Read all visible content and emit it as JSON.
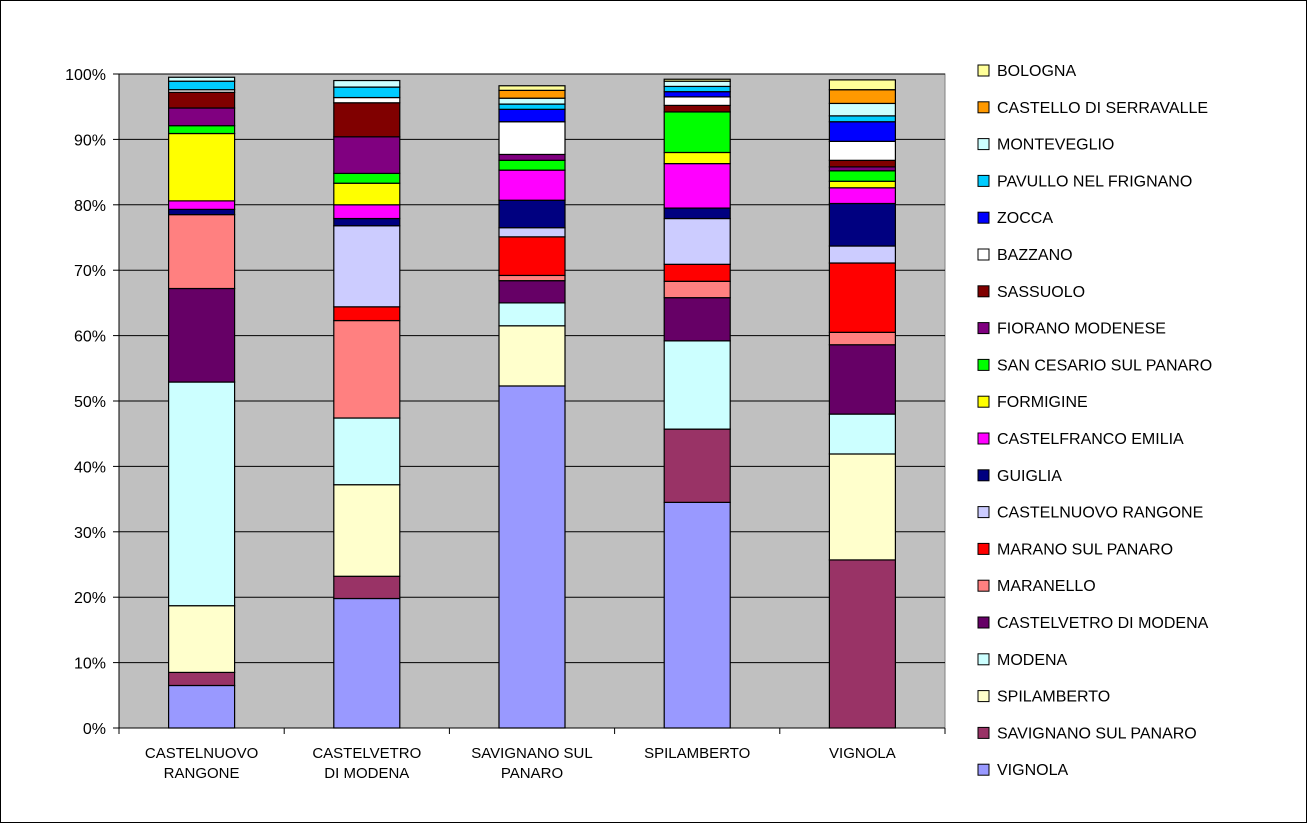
{
  "chart_data": {
    "type": "bar",
    "stacked": true,
    "normalized": true,
    "title": "",
    "xlabel": "",
    "ylabel": "",
    "ylim": [
      0,
      100
    ],
    "y_ticks": [
      "0%",
      "10%",
      "20%",
      "30%",
      "40%",
      "50%",
      "60%",
      "70%",
      "80%",
      "90%",
      "100%"
    ],
    "grid": true,
    "legend_position": "right",
    "plot_background": "#c0c0c0",
    "categories": [
      [
        "CASTELNUOVO",
        "RANGONE"
      ],
      [
        "CASTELVETRO",
        "DI MODENA"
      ],
      [
        "SAVIGNANO SUL",
        "PANARO"
      ],
      [
        "SPILAMBERTO"
      ],
      [
        "VIGNOLA"
      ]
    ],
    "series": [
      {
        "name": "VIGNOLA",
        "color": "#9999ff",
        "values": [
          6.5,
          19.8,
          52.3,
          34.5,
          0
        ]
      },
      {
        "name": "SAVIGNANO SUL PANARO",
        "color": "#993366",
        "values": [
          2.0,
          3.4,
          0,
          11.2,
          25.7
        ]
      },
      {
        "name": "SPILAMBERTO",
        "color": "#ffffcc",
        "values": [
          10.2,
          14.0,
          9.2,
          0,
          16.2
        ]
      },
      {
        "name": "MODENA",
        "color": "#ccffff",
        "values": [
          34.2,
          10.2,
          3.5,
          13.5,
          6.1
        ]
      },
      {
        "name": "CASTELVETRO DI MODENA",
        "color": "#660066",
        "values": [
          14.3,
          0,
          3.4,
          6.6,
          10.6
        ]
      },
      {
        "name": "MARANELLO",
        "color": "#ff8080",
        "values": [
          11.3,
          14.9,
          0.8,
          2.5,
          1.9
        ]
      },
      {
        "name": "MARANO SUL PANARO",
        "color": "#ff0000",
        "values": [
          0,
          2.1,
          5.9,
          2.6,
          10.6
        ]
      },
      {
        "name": "CASTELNUOVO RANGONE",
        "color": "#ccccff",
        "values": [
          0,
          12.4,
          1.4,
          7.0,
          2.6
        ]
      },
      {
        "name": "GUIGLIA",
        "color": "#000080",
        "values": [
          0.8,
          1.1,
          4.2,
          1.6,
          6.5
        ]
      },
      {
        "name": "CASTELFRANCO EMILIA",
        "color": "#ff00ff",
        "values": [
          1.3,
          2.1,
          4.6,
          6.8,
          2.4
        ]
      },
      {
        "name": "FORMIGINE",
        "color": "#ffff00",
        "values": [
          10.3,
          3.3,
          0,
          1.7,
          1.0
        ]
      },
      {
        "name": "SAN CESARIO SUL PANARO",
        "color": "#00ff00",
        "values": [
          1.2,
          1.5,
          1.5,
          6.2,
          1.6
        ]
      },
      {
        "name": "FIORANO MODENESE",
        "color": "#800080",
        "values": [
          2.7,
          5.6,
          0.9,
          0,
          0.6
        ]
      },
      {
        "name": "SASSUOLO",
        "color": "#800000",
        "values": [
          2.4,
          5.2,
          0,
          1.0,
          1.0
        ]
      },
      {
        "name": "BAZZANO",
        "color": "#ffffff",
        "values": [
          0.4,
          0.8,
          5.0,
          1.3,
          2.9
        ]
      },
      {
        "name": "ZOCCA",
        "color": "#0000ff",
        "values": [
          0,
          0,
          1.9,
          0.8,
          3.0
        ]
      },
      {
        "name": "PAVULLO NEL FRIGNANO",
        "color": "#00ccff",
        "values": [
          1.3,
          1.6,
          0.8,
          0.8,
          0.9
        ]
      },
      {
        "name": "MONTEVEGLIO",
        "color": "#ccffff",
        "values": [
          0.6,
          1.0,
          0.9,
          0.8,
          1.9
        ]
      },
      {
        "name": "CASTELLO DI SERRAVALLE",
        "color": "#ff9900",
        "values": [
          0,
          0,
          1.2,
          0,
          2.1
        ]
      },
      {
        "name": "BOLOGNA",
        "color": "#ffff99",
        "values": [
          0,
          0,
          0.7,
          0.3,
          1.5
        ]
      }
    ]
  }
}
